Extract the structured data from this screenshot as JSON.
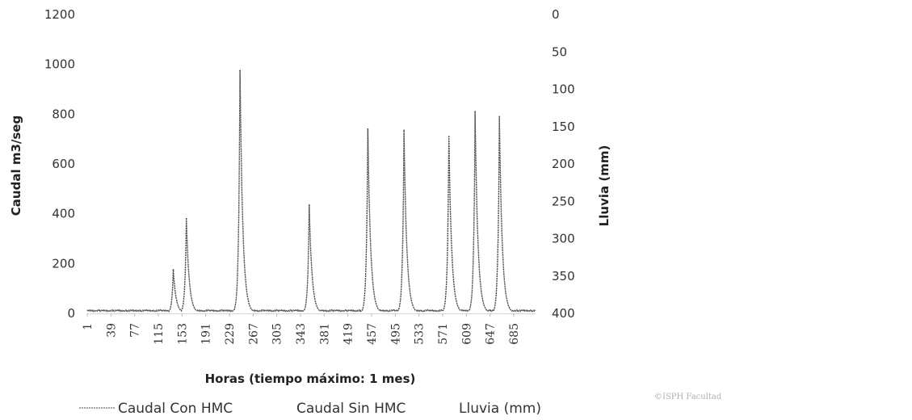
{
  "chart_data": {
    "type": "line",
    "xlabel": "Horas (tiempo máximo: 1 mes)",
    "ylabel": "Caudal m3/seg",
    "y2label": "Lluvia (mm)",
    "ylim": [
      0,
      1200
    ],
    "y2lim": [
      0,
      400
    ],
    "y2_inverted": true,
    "yticks": [
      "0",
      "200",
      "400",
      "600",
      "800",
      "1000",
      "1200"
    ],
    "y2ticks": [
      "0",
      "50",
      "100",
      "150",
      "200",
      "250",
      "300",
      "350",
      "400"
    ],
    "xtick_labels": [
      "1",
      "39",
      "77",
      "115",
      "153",
      "191",
      "229",
      "267",
      "305",
      "343",
      "381",
      "419",
      "457",
      "495",
      "533",
      "571",
      "609",
      "647",
      "685"
    ],
    "xlim": [
      1,
      720
    ],
    "legend_position": "bottom",
    "grid": false,
    "series": [
      {
        "name": "Caudal Con HMC",
        "color": "#444444",
        "baseline": 8,
        "peaks": [
          {
            "x": 139,
            "y": 175
          },
          {
            "x": 160,
            "y": 380
          },
          {
            "x": 246,
            "y": 975
          },
          {
            "x": 357,
            "y": 435
          },
          {
            "x": 451,
            "y": 740
          },
          {
            "x": 509,
            "y": 735
          },
          {
            "x": 581,
            "y": 710
          },
          {
            "x": 623,
            "y": 810
          },
          {
            "x": 662,
            "y": 790
          }
        ]
      },
      {
        "name": "Caudal Sin HMC",
        "color": "#999999",
        "baseline": 8,
        "peaks": [
          {
            "x": 139,
            "y": 160
          },
          {
            "x": 160,
            "y": 370
          },
          {
            "x": 246,
            "y": 960
          },
          {
            "x": 357,
            "y": 425
          },
          {
            "x": 451,
            "y": 730
          },
          {
            "x": 509,
            "y": 725
          },
          {
            "x": 581,
            "y": 700
          },
          {
            "x": 623,
            "y": 800
          },
          {
            "x": 662,
            "y": 780
          }
        ]
      },
      {
        "name": "Lluvia (mm)",
        "color": "#bbbbbb",
        "axis": "right"
      }
    ]
  },
  "watermark": "©ISPH Facultad"
}
